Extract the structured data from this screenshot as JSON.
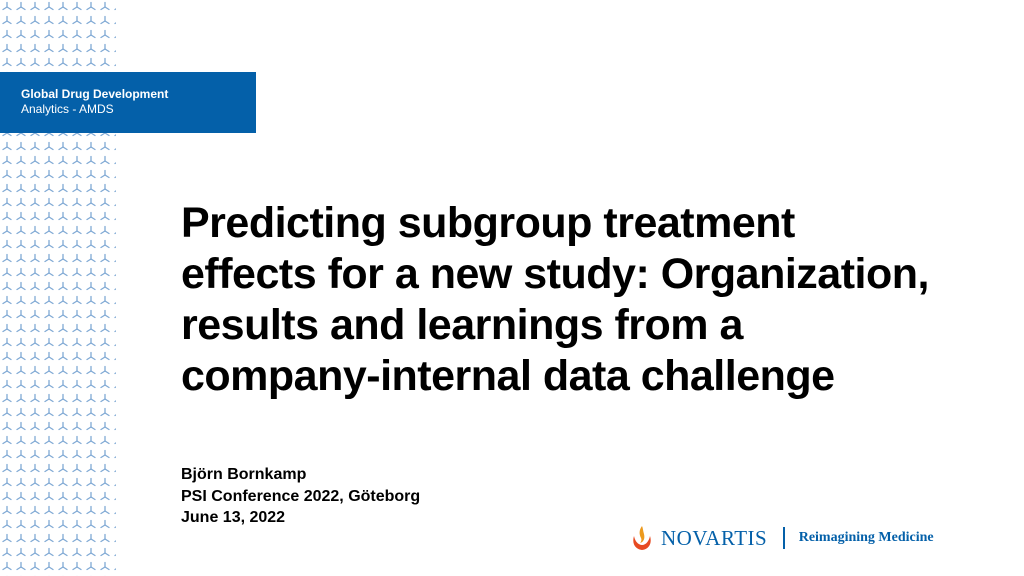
{
  "department": {
    "line1": "Global Drug Development",
    "line2": "Analytics - AMDS"
  },
  "title": "Predicting subgroup treatment effects for a new study: Organization, results and learnings from a company-internal data challenge",
  "author": "Björn Bornkamp",
  "event": "PSI Conference 2022, Göteborg",
  "date": "June 13, 2022",
  "logo": {
    "brand": "NOVARTIS",
    "tagline": "Reimagining Medicine",
    "brand_color": "#0460A9",
    "flame_colors": [
      "#EC9A1E",
      "#E74A21"
    ]
  },
  "colors": {
    "accent": "#0460A9",
    "pattern": "#7FA9D4"
  }
}
